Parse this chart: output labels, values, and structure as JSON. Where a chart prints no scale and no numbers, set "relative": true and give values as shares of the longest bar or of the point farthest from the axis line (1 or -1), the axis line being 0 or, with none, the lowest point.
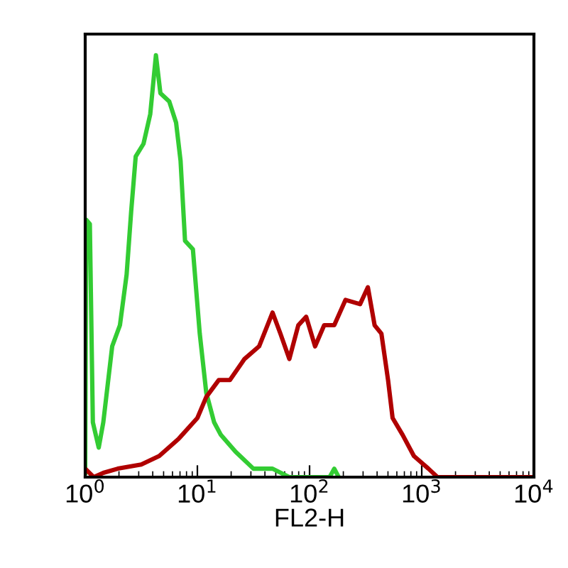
{
  "chart_data": {
    "type": "line",
    "xlabel": "FL2-H",
    "log": "x",
    "relative": true,
    "xlim": [
      1,
      10000
    ],
    "xticks": [
      {
        "value": 1,
        "label": "10$^{0}$"
      },
      {
        "value": 10,
        "label": "10$^{1}$"
      },
      {
        "value": 100,
        "label": "10$^{2}$"
      },
      {
        "value": 1000,
        "label": "10$^{3}$"
      },
      {
        "value": 10000,
        "label": "10$^{4}$"
      }
    ],
    "grid": false,
    "legend": false,
    "series": [
      {
        "color": "#33cc33",
        "x": [
          1,
          1.02,
          1.1,
          1.17,
          1.32,
          1.45,
          1.74,
          2.04,
          2.34,
          2.57,
          2.82,
          3.31,
          3.8,
          4.27,
          4.68,
          5.62,
          6.46,
          7.08,
          7.76,
          9.12,
          10.5,
          12,
          14.1,
          16.2,
          21.9,
          31.6,
          46.8,
          66,
          151,
          166,
          182
        ],
        "values": [
          0.01,
          0.61,
          0.6,
          0.13,
          0.07,
          0.13,
          0.31,
          0.36,
          0.48,
          0.63,
          0.76,
          0.79,
          0.86,
          1.0,
          0.91,
          0.89,
          0.84,
          0.75,
          0.56,
          0.54,
          0.34,
          0.2,
          0.13,
          0.1,
          0.06,
          0.02,
          0.02,
          0.0,
          0.0,
          0.02,
          0.0
        ]
      },
      {
        "color": "#b00000",
        "x": [
          1,
          1.19,
          1.45,
          1.95,
          3.16,
          4.57,
          6.76,
          10,
          12,
          15.5,
          19.5,
          26.3,
          35.5,
          46.8,
          55,
          66,
          79.4,
          93.3,
          112,
          135,
          166,
          209,
          282,
          331,
          380,
          437,
          501,
          550,
          676,
          851,
          1148,
          1380,
          9550
        ],
        "values": [
          0.02,
          0.0,
          0.01,
          0.02,
          0.03,
          0.05,
          0.09,
          0.14,
          0.19,
          0.23,
          0.23,
          0.28,
          0.31,
          0.39,
          0.34,
          0.28,
          0.36,
          0.38,
          0.31,
          0.36,
          0.36,
          0.42,
          0.41,
          0.45,
          0.36,
          0.34,
          0.23,
          0.14,
          0.1,
          0.05,
          0.02,
          0.0,
          0.0
        ]
      }
    ]
  }
}
